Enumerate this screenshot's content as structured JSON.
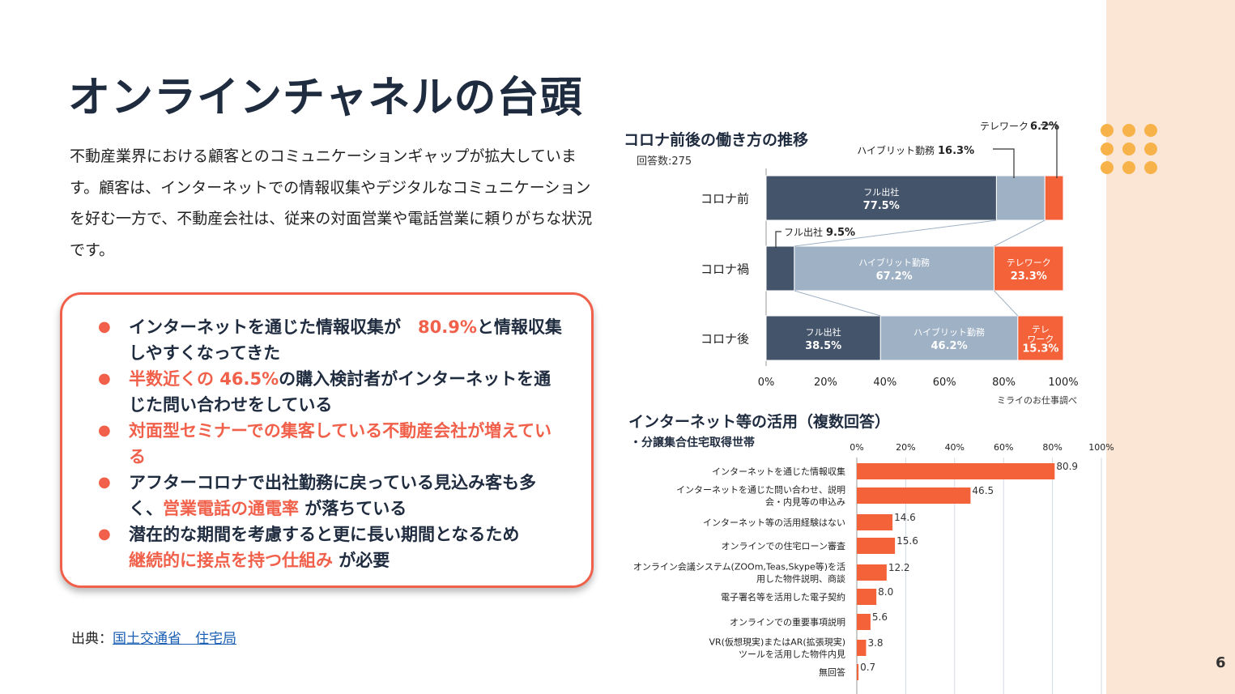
{
  "title": "オンラインチャネルの台頭",
  "intro": "不動産業界における顧客とのコミュニケーションギャップが拡大しています。顧客は、インターネットでの情報収集やデジタルなコミュニケーションを好む一方で、不動産会社は、従来の対面営業や電話営業に頼りがちな状況です。",
  "bullets": [
    {
      "a": "インターネットを通じた情報収集が　",
      "b": "80.9%",
      "c": "と情報収集しやすくなってきた",
      "d": "",
      "e": ""
    },
    {
      "a": "",
      "b": "半数近くの 46.5%",
      "c": "の購入検討者がインターネットを通じた問い合わせをしている",
      "d": "",
      "e": ""
    },
    {
      "a": "",
      "b": "対面型セミナーでの集客している不動産会社が増えている",
      "c": "",
      "d": "",
      "e": ""
    },
    {
      "a": "アフターコロナで出社勤務に戻っている見込み客も多く、",
      "b": "営業電話の通電率",
      "c": " が落ちている",
      "d": "",
      "e": ""
    },
    {
      "a": "潜在的な期間を考慮すると更に長い期間となるため",
      "b": "継続的に接点を持つ仕組み",
      "c": " が必要",
      "d": "",
      "e": ""
    }
  ],
  "source": {
    "label": "出典：",
    "link": "国土交通省　住宅局"
  },
  "page_number": "6",
  "colors": {
    "accent": "#f0604a",
    "navy": "#44546a",
    "blue_grey": "#9fb1c5",
    "telework": "#f4623a",
    "dots": "#f7b24a",
    "band": "#fbe6d6"
  },
  "chart_data": [
    {
      "type": "bar",
      "orientation": "horizontal-stacked",
      "title": "コロナ前後の働き方の推移",
      "subtitle": "回答数:275",
      "categories": [
        "コロナ前",
        "コロナ禍",
        "コロナ後"
      ],
      "series": [
        {
          "name": "フル出社",
          "values": [
            77.5,
            9.5,
            38.5
          ]
        },
        {
          "name": "ハイブリット勤務",
          "values": [
            16.3,
            67.2,
            46.2
          ]
        },
        {
          "name": "テレワーク",
          "values": [
            6.2,
            23.3,
            15.3
          ]
        }
      ],
      "series_colors": [
        "#44546a",
        "#9fb1c5",
        "#f4623a"
      ],
      "seg_labels": [
        [
          [
            "フル出社",
            "77.5%"
          ],
          [
            "",
            ""
          ],
          [
            "",
            ""
          ]
        ],
        [
          [
            "",
            ""
          ],
          [
            "ハイブリット勤務",
            "67.2%"
          ],
          [
            "テレワーク",
            "23.3%"
          ]
        ],
        [
          [
            "フル出社",
            "38.5%"
          ],
          [
            "ハイブリット勤務",
            "46.2%"
          ],
          [
            "テレ\nワーク",
            "15.3%"
          ]
        ]
      ],
      "callouts": [
        {
          "name": "テレワーク",
          "value": "6.2%"
        },
        {
          "name": "ハイブリット勤務",
          "value": "16.3%"
        },
        {
          "name": "フル出社",
          "value": "9.5%"
        }
      ],
      "xlim": [
        0,
        100
      ],
      "xticks": [
        "0%",
        "20%",
        "40%",
        "60%",
        "80%",
        "100%"
      ],
      "note": "ミライのお仕事調べ"
    },
    {
      "type": "bar",
      "orientation": "horizontal",
      "title": "インターネット等の活用（複数回答）",
      "subtitle": "・分譲集合住宅取得世帯",
      "categories": [
        "インターネットを通じた情報収集",
        "インターネットを通じた問い合わせ、説明\n会・内見等の申込み",
        "インターネット等の活用経験はない",
        "オンラインでの住宅ローン審査",
        "オンライン会議システム(ZOOm,Teas,Skype等)を活\n用した物件説明、商談",
        "電子署名等を活用した電子契約",
        "オンラインでの重要事項説明",
        "VR(仮想現実)またはAR(拡張現実)\nツールを活用した物件内見",
        "無回答"
      ],
      "values": [
        80.9,
        46.5,
        14.6,
        15.6,
        12.2,
        8.0,
        5.6,
        3.8,
        0.7
      ],
      "value_labels": [
        "80.9",
        "46.5",
        "14.6",
        "15.6",
        "12.2",
        "8.0",
        "5.6",
        "3.8",
        "0.7"
      ],
      "color": "#f4623a",
      "xlim": [
        0,
        100
      ],
      "xticks": [
        "0%",
        "20%",
        "40%",
        "60%",
        "80%",
        "100%"
      ],
      "grid": true
    }
  ]
}
